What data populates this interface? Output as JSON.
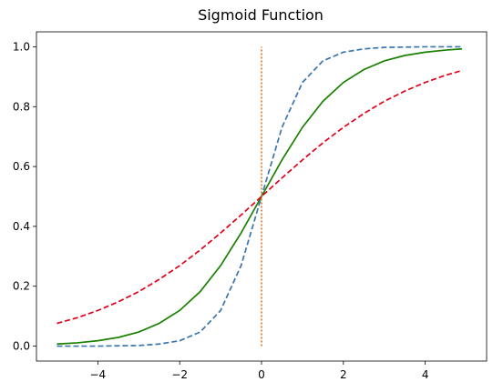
{
  "chart_data": {
    "type": "line",
    "title": "Sigmoid Function",
    "xlabel": "",
    "ylabel": "",
    "xlim": [
      -5.5,
      5.5
    ],
    "ylim": [
      -0.05,
      1.05
    ],
    "xticks": [
      -4,
      -2,
      0,
      2,
      4
    ],
    "xtick_labels": [
      "−4",
      "−2",
      "0",
      "2",
      "4"
    ],
    "yticks": [
      0.0,
      0.2,
      0.4,
      0.6,
      0.8,
      1.0
    ],
    "ytick_labels": [
      "0.0",
      "0.2",
      "0.4",
      "0.6",
      "0.8",
      "1.0"
    ],
    "grid": false,
    "series": [
      {
        "color": "#3b75af",
        "style": "dashed",
        "x": [
          -5.0,
          -4.5,
          -4.0,
          -3.5,
          -3.0,
          -2.5,
          -2.0,
          -1.5,
          -1.0,
          -0.5,
          0.0,
          0.5,
          1.0,
          1.5,
          2.0,
          2.5,
          3.0,
          3.5,
          4.0,
          4.5,
          4.9
        ],
        "y": [
          0.0,
          0.0,
          0.0,
          0.001,
          0.002,
          0.007,
          0.018,
          0.047,
          0.119,
          0.269,
          0.5,
          0.731,
          0.881,
          0.953,
          0.982,
          0.993,
          0.998,
          0.999,
          1.0,
          1.0,
          1.0
        ]
      },
      {
        "color": "#1a8000",
        "style": "solid",
        "x": [
          -5.0,
          -4.5,
          -4.0,
          -3.5,
          -3.0,
          -2.5,
          -2.0,
          -1.5,
          -1.0,
          -0.5,
          0.0,
          0.5,
          1.0,
          1.5,
          2.0,
          2.5,
          3.0,
          3.5,
          4.0,
          4.5,
          4.9
        ],
        "y": [
          0.007,
          0.011,
          0.018,
          0.029,
          0.047,
          0.076,
          0.119,
          0.182,
          0.269,
          0.378,
          0.5,
          0.622,
          0.731,
          0.818,
          0.881,
          0.924,
          0.953,
          0.971,
          0.982,
          0.989,
          0.993
        ]
      },
      {
        "color": "#e3001b",
        "style": "dashed",
        "x": [
          -5.0,
          -4.5,
          -4.0,
          -3.5,
          -3.0,
          -2.5,
          -2.0,
          -1.5,
          -1.0,
          -0.5,
          0.0,
          0.5,
          1.0,
          1.5,
          2.0,
          2.5,
          3.0,
          3.5,
          4.0,
          4.5,
          4.9
        ],
        "y": [
          0.076,
          0.095,
          0.119,
          0.148,
          0.182,
          0.223,
          0.269,
          0.321,
          0.378,
          0.438,
          0.5,
          0.562,
          0.622,
          0.679,
          0.731,
          0.777,
          0.818,
          0.852,
          0.881,
          0.905,
          0.921
        ]
      },
      {
        "color": "#e07020",
        "style": "dotted",
        "x": [
          0.0,
          0.0
        ],
        "y": [
          0.0,
          1.0
        ]
      }
    ]
  }
}
